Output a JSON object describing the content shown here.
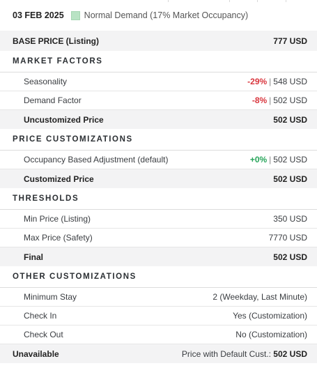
{
  "header": {
    "date": "03 FEB 2025",
    "demand_label": "Normal Demand (17% Market Occupancy)",
    "demand_color": "#b9e3c4"
  },
  "base_price": {
    "label": "BASE PRICE (Listing)",
    "value": "777 USD"
  },
  "market_factors": {
    "title": "MARKET FACTORS",
    "rows": [
      {
        "label": "Seasonality",
        "change": "-29%",
        "value": "548 USD"
      },
      {
        "label": "Demand Factor",
        "change": "-8%",
        "value": "502 USD"
      }
    ],
    "total": {
      "label": "Uncustomized Price",
      "value": "502 USD"
    }
  },
  "price_customizations": {
    "title": "PRICE CUSTOMIZATIONS",
    "rows": [
      {
        "label": "Occupancy Based Adjustment (default)",
        "change": "+0%",
        "value": "502 USD"
      }
    ],
    "total": {
      "label": "Customized Price",
      "value": "502 USD"
    }
  },
  "thresholds": {
    "title": "THRESHOLDS",
    "rows": [
      {
        "label": "Min Price (Listing)",
        "value": "350 USD"
      },
      {
        "label": "Max Price (Safety)",
        "value": "7770 USD"
      }
    ],
    "total": {
      "label": "Final",
      "value": "502 USD"
    }
  },
  "other_customizations": {
    "title": "OTHER CUSTOMIZATIONS",
    "rows": [
      {
        "label": "Minimum Stay",
        "value": "2 (Weekday, Last Minute)"
      },
      {
        "label": "Check In",
        "value": "Yes (Customization)"
      },
      {
        "label": "Check Out",
        "value": "No (Customization)"
      }
    ]
  },
  "footer": {
    "label": "Unavailable",
    "note": "Price with Default Cust.:",
    "value": "502 USD"
  },
  "colors": {
    "negative": "#d9363e",
    "positive": "#27a55a",
    "total_bg": "#f3f3f4"
  }
}
